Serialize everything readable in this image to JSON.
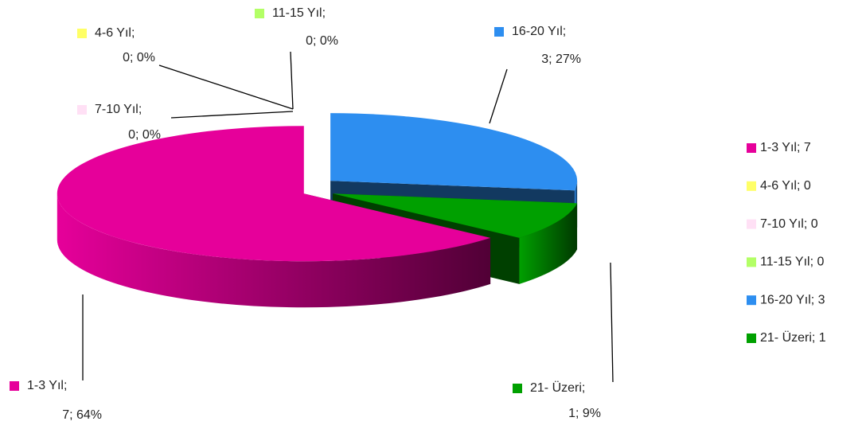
{
  "chart_data": {
    "type": "pie",
    "categories": [
      "1-3 Yıl;",
      "4-6 Yıl;",
      "7-10 Yıl;",
      "11-15 Yıl;",
      "16-20 Yıl;",
      "21- Üzeri;"
    ],
    "values": [
      7,
      0,
      0,
      0,
      3,
      1
    ],
    "value_labels": [
      "7; 64%",
      "0; 0%",
      "0; 0%",
      "0; 0%",
      "3; 27%",
      "1; 9%"
    ],
    "legend_labels": [
      "1-3 Yıl; 7",
      "4-6 Yıl; 0",
      "7-10 Yıl; 0",
      "11-15 Yıl; 0",
      "16-20 Yıl; 3",
      "21- Üzeri; 1"
    ],
    "colors": [
      "#e6009a",
      "#ffff66",
      "#ffe0f5",
      "#b3ff66",
      "#2d8ef0",
      "#00a000"
    ],
    "legend": "right"
  }
}
